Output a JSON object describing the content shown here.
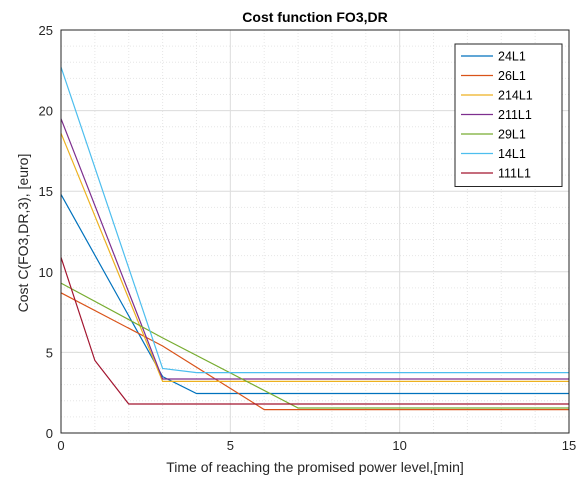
{
  "chart_data": {
    "type": "line",
    "title": "Cost function FO3,DR",
    "xlabel": "Time of reaching the promised power level,[min]",
    "ylabel": "Cost C(FO3,DR,3), [euro]",
    "xlim": [
      0,
      15
    ],
    "ylim": [
      0,
      25
    ],
    "xticks": [
      0,
      5,
      10,
      15
    ],
    "yticks": [
      0,
      5,
      10,
      15,
      20,
      25
    ],
    "grid": true,
    "minor_grid": true,
    "legend_position": "top-right",
    "series": [
      {
        "name": "24L1",
        "color": "#0072BD",
        "points": [
          [
            0,
            14.8
          ],
          [
            3,
            3.5
          ],
          [
            4,
            2.45
          ],
          [
            15,
            2.45
          ]
        ]
      },
      {
        "name": "26L1",
        "color": "#D95319",
        "points": [
          [
            0,
            8.7
          ],
          [
            3,
            5.4
          ],
          [
            6,
            1.45
          ],
          [
            15,
            1.45
          ]
        ]
      },
      {
        "name": "214L1",
        "color": "#EDB120",
        "points": [
          [
            0,
            18.6
          ],
          [
            3,
            3.2
          ],
          [
            15,
            3.2
          ]
        ]
      },
      {
        "name": "211L1",
        "color": "#7E2F8E",
        "points": [
          [
            0,
            19.5
          ],
          [
            3,
            3.35
          ],
          [
            15,
            3.35
          ]
        ]
      },
      {
        "name": "29L1",
        "color": "#77AC30",
        "points": [
          [
            0,
            9.3
          ],
          [
            3,
            5.9
          ],
          [
            7,
            1.55
          ],
          [
            15,
            1.55
          ]
        ]
      },
      {
        "name": "14L1",
        "color": "#4DBEEE",
        "points": [
          [
            0,
            22.7
          ],
          [
            3,
            4.0
          ],
          [
            4,
            3.75
          ],
          [
            15,
            3.75
          ]
        ]
      },
      {
        "name": "111L1",
        "color": "#A2142F",
        "points": [
          [
            0,
            10.9
          ],
          [
            1,
            4.5
          ],
          [
            2,
            1.8
          ],
          [
            15,
            1.8
          ]
        ]
      }
    ]
  }
}
